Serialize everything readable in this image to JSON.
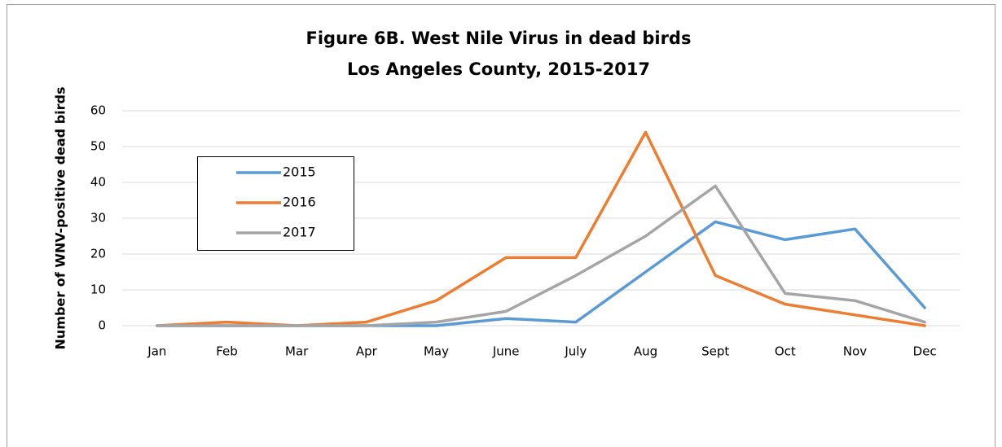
{
  "chart_data": {
    "type": "line",
    "title": "Figure 6B. West Nile Virus in dead birds",
    "subtitle": "Los Angeles County, 2015-2017",
    "y_label": "Number of WNV-positive dead birds",
    "categories": [
      "Jan",
      "Feb",
      "Mar",
      "Apr",
      "May",
      "June",
      "July",
      "Aug",
      "Sept",
      "Oct",
      "Nov",
      "Dec"
    ],
    "series": [
      {
        "name": "2015",
        "color": "#5b9bd5",
        "values": [
          0,
          0,
          0,
          0,
          0,
          2,
          1,
          15,
          29,
          24,
          27,
          5
        ]
      },
      {
        "name": "2016",
        "color": "#ed7d31",
        "values": [
          0,
          1,
          0,
          1,
          7,
          19,
          19,
          54,
          14,
          6,
          3,
          0
        ]
      },
      {
        "name": "2017",
        "color": "#a5a5a5",
        "values": [
          0,
          0,
          0,
          0,
          1,
          4,
          14,
          25,
          39,
          9,
          7,
          1
        ]
      }
    ],
    "ylim": [
      0,
      60
    ],
    "yticks": [
      0,
      10,
      20,
      30,
      40,
      50,
      60
    ],
    "grid": true
  }
}
